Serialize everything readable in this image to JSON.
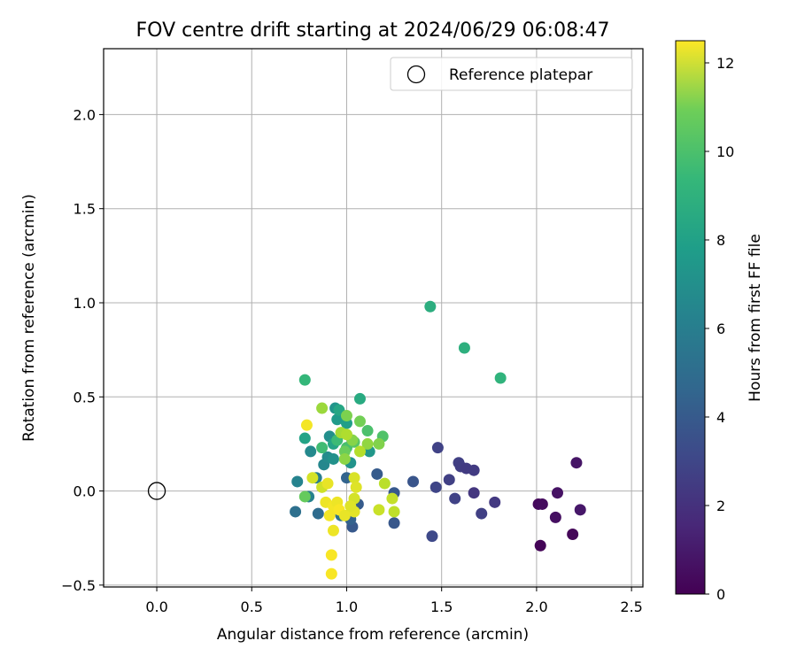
{
  "chart_data": {
    "type": "scatter",
    "title": "FOV centre drift starting at 2024/06/29 06:08:47",
    "xlabel": "Angular distance from reference (arcmin)",
    "ylabel": "Rotation from reference (arcmin)",
    "xlim": [
      -0.28,
      2.56
    ],
    "ylim": [
      -0.51,
      2.35
    ],
    "xticks": [
      0.0,
      0.5,
      1.0,
      1.5,
      2.0,
      2.5
    ],
    "xtick_labels": [
      "0.0",
      "0.5",
      "1.0",
      "1.5",
      "2.0",
      "2.5"
    ],
    "yticks": [
      -0.5,
      0.0,
      0.5,
      1.0,
      1.5,
      2.0
    ],
    "ytick_labels": [
      "−0.5",
      "0.0",
      "0.5",
      "1.0",
      "1.5",
      "2.0"
    ],
    "grid": true,
    "legend": {
      "placement": "top-right",
      "entries": [
        "Reference platepar"
      ]
    },
    "reference_point": {
      "x": 0.0,
      "y": 0.0
    },
    "colorbar": {
      "label": "Hours from first FF file",
      "colormap": "viridis",
      "range": [
        0,
        12.5
      ],
      "ticks": [
        0,
        2,
        4,
        6,
        8,
        10,
        12
      ],
      "tick_labels": [
        "0",
        "2",
        "4",
        "6",
        "8",
        "10",
        "12"
      ]
    },
    "points": [
      {
        "x": 2.02,
        "y": -0.29,
        "h": 0.1
      },
      {
        "x": 2.01,
        "y": -0.07,
        "h": 0.3
      },
      {
        "x": 2.03,
        "y": -0.07,
        "h": 0.4
      },
      {
        "x": 2.1,
        "y": -0.14,
        "h": 0.5
      },
      {
        "x": 2.11,
        "y": -0.01,
        "h": 0.6
      },
      {
        "x": 2.19,
        "y": -0.23,
        "h": 0.2
      },
      {
        "x": 2.21,
        "y": 0.15,
        "h": 0.7
      },
      {
        "x": 2.23,
        "y": -0.1,
        "h": 0.8
      },
      {
        "x": 1.45,
        "y": -0.24,
        "h": 2.8
      },
      {
        "x": 1.47,
        "y": 0.02,
        "h": 2.6
      },
      {
        "x": 1.48,
        "y": 0.23,
        "h": 2.5
      },
      {
        "x": 1.54,
        "y": 0.06,
        "h": 2.4
      },
      {
        "x": 1.57,
        "y": -0.04,
        "h": 2.5
      },
      {
        "x": 1.59,
        "y": 0.15,
        "h": 2.4
      },
      {
        "x": 1.6,
        "y": 0.13,
        "h": 2.3
      },
      {
        "x": 1.63,
        "y": 0.12,
        "h": 2.2
      },
      {
        "x": 1.67,
        "y": 0.11,
        "h": 2.2
      },
      {
        "x": 1.67,
        "y": -0.01,
        "h": 2.0
      },
      {
        "x": 1.71,
        "y": -0.12,
        "h": 2.4
      },
      {
        "x": 1.78,
        "y": -0.06,
        "h": 2.1
      },
      {
        "x": 1.35,
        "y": 0.05,
        "h": 3.3
      },
      {
        "x": 1.25,
        "y": -0.01,
        "h": 3.5
      },
      {
        "x": 1.25,
        "y": -0.17,
        "h": 3.4
      },
      {
        "x": 1.16,
        "y": 0.09,
        "h": 3.6
      },
      {
        "x": 1.03,
        "y": -0.19,
        "h": 3.5
      },
      {
        "x": 1.06,
        "y": -0.07,
        "h": 3.6
      },
      {
        "x": 1.0,
        "y": 0.07,
        "h": 4.0
      },
      {
        "x": 1.02,
        "y": -0.15,
        "h": 3.9
      },
      {
        "x": 0.73,
        "y": -0.11,
        "h": 4.6
      },
      {
        "x": 0.85,
        "y": -0.12,
        "h": 4.4
      },
      {
        "x": 0.97,
        "y": -0.13,
        "h": 4.7
      },
      {
        "x": 0.74,
        "y": 0.05,
        "h": 5.6
      },
      {
        "x": 0.8,
        "y": -0.03,
        "h": 5.5
      },
      {
        "x": 0.84,
        "y": 0.07,
        "h": 5.3
      },
      {
        "x": 0.81,
        "y": 0.21,
        "h": 5.9
      },
      {
        "x": 0.88,
        "y": 0.14,
        "h": 5.8
      },
      {
        "x": 0.9,
        "y": 0.18,
        "h": 6.0
      },
      {
        "x": 0.91,
        "y": 0.29,
        "h": 6.2
      },
      {
        "x": 0.93,
        "y": 0.17,
        "h": 6.3
      },
      {
        "x": 0.94,
        "y": 0.44,
        "h": 6.5
      },
      {
        "x": 0.95,
        "y": 0.38,
        "h": 6.8
      },
      {
        "x": 1.02,
        "y": 0.15,
        "h": 6.4
      },
      {
        "x": 1.12,
        "y": 0.21,
        "h": 6.6
      },
      {
        "x": 1.0,
        "y": 0.36,
        "h": 7.0
      },
      {
        "x": 0.78,
        "y": 0.28,
        "h": 7.2
      },
      {
        "x": 0.93,
        "y": 0.25,
        "h": 7.3
      },
      {
        "x": 0.96,
        "y": 0.43,
        "h": 7.4
      },
      {
        "x": 1.07,
        "y": 0.49,
        "h": 7.6
      },
      {
        "x": 1.44,
        "y": 0.98,
        "h": 7.8
      },
      {
        "x": 1.62,
        "y": 0.76,
        "h": 7.9
      },
      {
        "x": 1.81,
        "y": 0.6,
        "h": 8.1
      },
      {
        "x": 0.78,
        "y": 0.59,
        "h": 8.3
      },
      {
        "x": 0.95,
        "y": 0.27,
        "h": 8.5
      },
      {
        "x": 0.87,
        "y": 0.23,
        "h": 8.6
      },
      {
        "x": 1.0,
        "y": 0.23,
        "h": 8.8
      },
      {
        "x": 1.11,
        "y": 0.32,
        "h": 8.9
      },
      {
        "x": 1.19,
        "y": 0.29,
        "h": 9.0
      },
      {
        "x": 1.04,
        "y": 0.26,
        "h": 9.2
      },
      {
        "x": 0.78,
        "y": -0.03,
        "h": 9.5
      },
      {
        "x": 0.99,
        "y": 0.21,
        "h": 9.6
      },
      {
        "x": 1.07,
        "y": 0.37,
        "h": 9.8
      },
      {
        "x": 1.0,
        "y": 0.4,
        "h": 10.0
      },
      {
        "x": 1.03,
        "y": 0.27,
        "h": 10.2
      },
      {
        "x": 1.17,
        "y": 0.25,
        "h": 10.1
      },
      {
        "x": 1.11,
        "y": 0.25,
        "h": 10.4
      },
      {
        "x": 0.87,
        "y": 0.44,
        "h": 10.6
      },
      {
        "x": 0.99,
        "y": 0.17,
        "h": 10.3
      },
      {
        "x": 0.97,
        "y": 0.31,
        "h": 10.8
      },
      {
        "x": 1.0,
        "y": 0.3,
        "h": 11.0
      },
      {
        "x": 1.07,
        "y": 0.21,
        "h": 11.1
      },
      {
        "x": 1.2,
        "y": 0.04,
        "h": 11.2
      },
      {
        "x": 1.24,
        "y": -0.04,
        "h": 11.4
      },
      {
        "x": 1.25,
        "y": -0.11,
        "h": 11.3
      },
      {
        "x": 1.17,
        "y": -0.1,
        "h": 11.5
      },
      {
        "x": 0.87,
        "y": 0.02,
        "h": 11.6
      },
      {
        "x": 0.82,
        "y": 0.07,
        "h": 11.7
      },
      {
        "x": 1.04,
        "y": 0.07,
        "h": 11.8
      },
      {
        "x": 1.05,
        "y": 0.02,
        "h": 11.9
      },
      {
        "x": 1.04,
        "y": -0.04,
        "h": 11.7
      },
      {
        "x": 1.04,
        "y": -0.11,
        "h": 12.0
      },
      {
        "x": 0.9,
        "y": 0.04,
        "h": 12.1
      },
      {
        "x": 0.89,
        "y": -0.06,
        "h": 12.2
      },
      {
        "x": 0.93,
        "y": -0.08,
        "h": 12.3
      },
      {
        "x": 0.95,
        "y": -0.06,
        "h": 12.2
      },
      {
        "x": 0.91,
        "y": -0.13,
        "h": 12.3
      },
      {
        "x": 0.96,
        "y": -0.1,
        "h": 12.4
      },
      {
        "x": 0.99,
        "y": -0.13,
        "h": 12.1
      },
      {
        "x": 0.93,
        "y": -0.21,
        "h": 12.2
      },
      {
        "x": 0.92,
        "y": -0.34,
        "h": 12.4
      },
      {
        "x": 0.92,
        "y": -0.44,
        "h": 12.4
      },
      {
        "x": 0.79,
        "y": 0.35,
        "h": 12.3
      },
      {
        "x": 1.02,
        "y": -0.08,
        "h": 11.9
      }
    ]
  }
}
